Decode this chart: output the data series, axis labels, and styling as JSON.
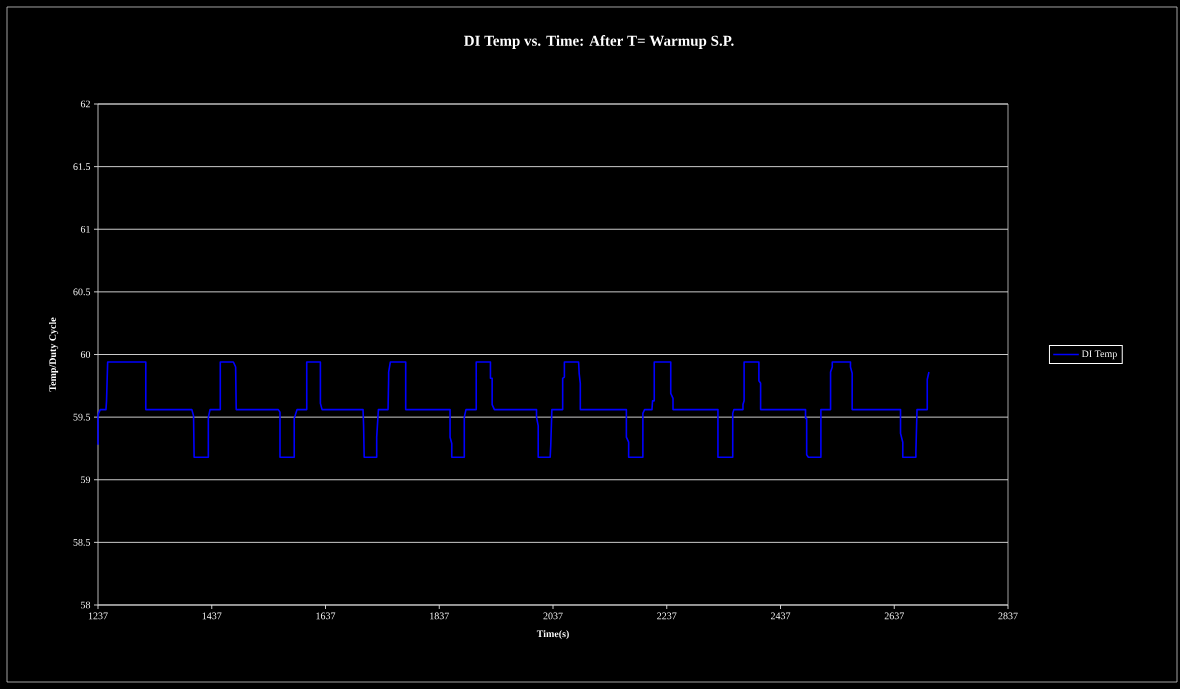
{
  "chart_data": {
    "type": "line",
    "title": "DI Temp vs. Time: After T= Warmup S.P.",
    "xlabel": "Time(s)",
    "ylabel": "Temp/Duty Cycle",
    "xlim": [
      1237,
      2837
    ],
    "xticks": [
      1237,
      1437,
      1637,
      1837,
      2037,
      2237,
      2437,
      2637,
      2837
    ],
    "ylim": [
      58,
      62
    ],
    "yticks": [
      58,
      58.5,
      59,
      59.5,
      60,
      60.5,
      61,
      61.5,
      62
    ],
    "grid": "y",
    "legend": "right",
    "marker": "none",
    "line_style": "solid",
    "series": [
      {
        "name": "DI Temp",
        "color": "#0000ff",
        "x": [
          1237,
          1237,
          1238,
          1241,
          1251,
          1252,
          1254,
          1321,
          1321,
          1402,
          1405,
          1406,
          1431,
          1431,
          1434,
          1452,
          1452,
          1475,
          1479,
          1480,
          1554,
          1557,
          1557,
          1582,
          1582,
          1587,
          1604,
          1604,
          1628,
          1628,
          1631,
          1703,
          1704,
          1705,
          1727,
          1727,
          1730,
          1747,
          1748,
          1748,
          1751,
          1778,
          1778,
          1856,
          1856,
          1859,
          1859,
          1881,
          1881,
          1884,
          1902,
          1902,
          1927,
          1927,
          1930,
          1930,
          1934,
          2008,
          2008,
          2011,
          2011,
          2032,
          2033,
          2035,
          2054,
          2054,
          2057,
          2057,
          2082,
          2083,
          2085,
          2085,
          2166,
          2166,
          2170,
          2170,
          2195,
          2195,
          2198,
          2211,
          2212,
          2215,
          2215,
          2244,
          2244,
          2248,
          2248,
          2327,
          2327,
          2353,
          2353,
          2355,
          2371,
          2371,
          2373,
          2373,
          2399,
          2399,
          2402,
          2402,
          2481,
          2481,
          2483,
          2483,
          2486,
          2508,
          2508,
          2525,
          2525,
          2528,
          2528,
          2560,
          2560,
          2563,
          2563,
          2648,
          2648,
          2652,
          2652,
          2675,
          2675,
          2677,
          2695,
          2695,
          2698
        ],
        "values": [
          59.28,
          59.5,
          59.53,
          59.56,
          59.56,
          59.63,
          59.94,
          59.94,
          59.56,
          59.56,
          59.51,
          59.18,
          59.18,
          59.5,
          59.56,
          59.56,
          59.94,
          59.94,
          59.9,
          59.56,
          59.56,
          59.54,
          59.18,
          59.18,
          59.49,
          59.56,
          59.56,
          59.94,
          59.94,
          59.61,
          59.56,
          59.56,
          59.43,
          59.18,
          59.18,
          59.34,
          59.56,
          59.56,
          59.81,
          59.86,
          59.94,
          59.94,
          59.56,
          59.56,
          59.34,
          59.29,
          59.18,
          59.18,
          59.5,
          59.56,
          59.56,
          59.94,
          59.94,
          59.81,
          59.81,
          59.6,
          59.56,
          59.56,
          59.5,
          59.43,
          59.18,
          59.18,
          59.27,
          59.56,
          59.56,
          59.81,
          59.82,
          59.94,
          59.94,
          59.85,
          59.77,
          59.56,
          59.56,
          59.34,
          59.3,
          59.18,
          59.18,
          59.53,
          59.56,
          59.56,
          59.63,
          59.63,
          59.94,
          59.94,
          59.69,
          59.65,
          59.56,
          59.56,
          59.18,
          59.18,
          59.53,
          59.56,
          59.56,
          59.6,
          59.63,
          59.94,
          59.94,
          59.79,
          59.77,
          59.56,
          59.56,
          59.49,
          59.49,
          59.2,
          59.18,
          59.18,
          59.56,
          59.56,
          59.86,
          59.9,
          59.94,
          59.94,
          59.9,
          59.85,
          59.56,
          59.56,
          59.37,
          59.3,
          59.18,
          59.18,
          59.22,
          59.56,
          59.56,
          59.8,
          59.86
        ]
      }
    ]
  }
}
